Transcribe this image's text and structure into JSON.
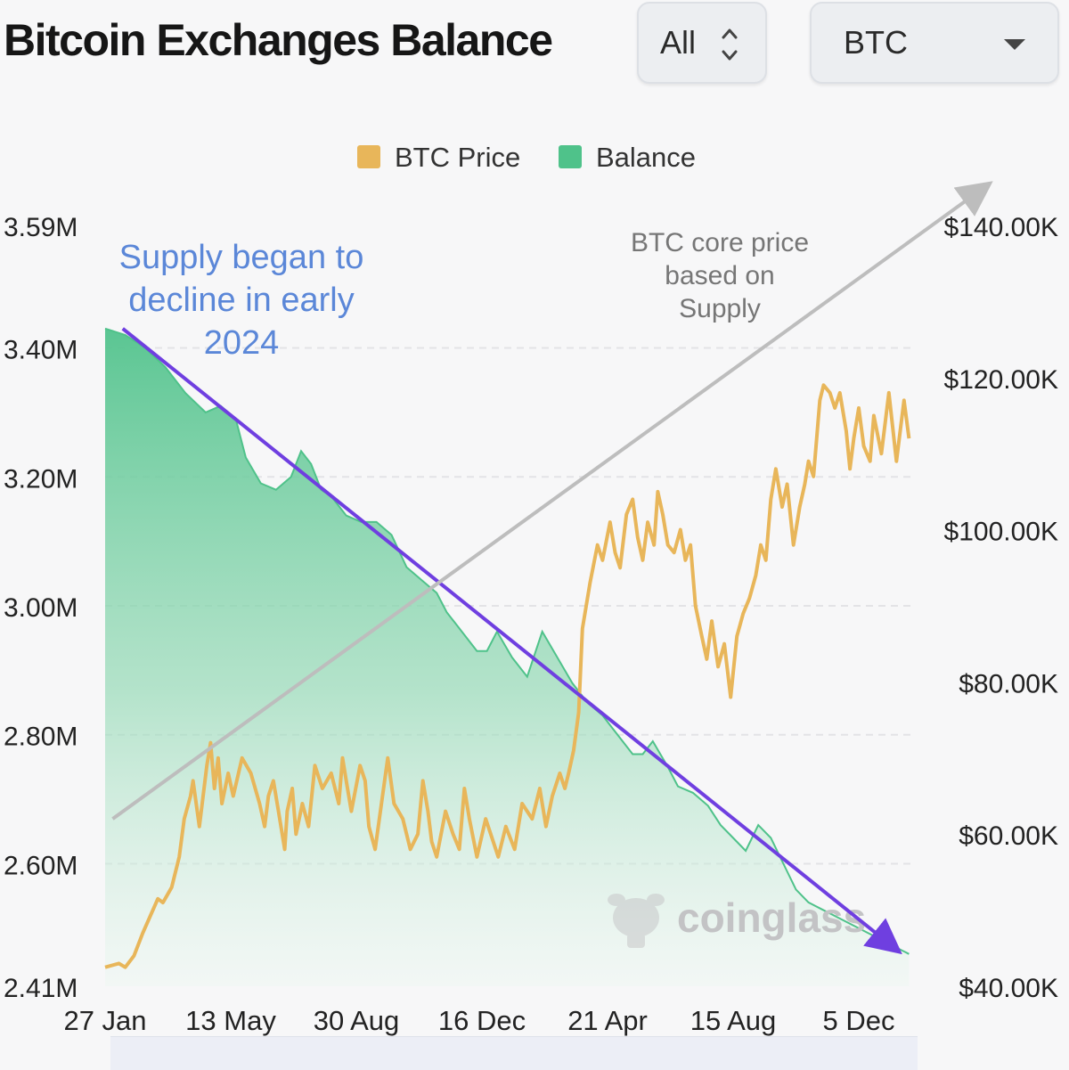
{
  "header": {
    "title": "Bitcoin Exchanges Balance",
    "range_select": {
      "value": "All"
    },
    "coin_select": {
      "value": "BTC"
    }
  },
  "chart_data": {
    "type": "line",
    "legend": [
      {
        "name": "BTC Price",
        "color": "#e8b65a"
      },
      {
        "name": "Balance",
        "color": "#4fc28a"
      }
    ],
    "legend_position": "top-center",
    "x_tick_labels": [
      "27 Jan",
      "13 May",
      "30 Aug",
      "16 Dec",
      "21 Apr",
      "15 Aug",
      "5 Dec"
    ],
    "y_left_tick_labels": [
      "3.59M",
      "3.40M",
      "3.20M",
      "3.00M",
      "2.80M",
      "2.60M",
      "2.41M"
    ],
    "y_left_ticks": [
      3590000,
      3400000,
      3200000,
      3000000,
      2800000,
      2600000,
      2410000
    ],
    "y_left_range": [
      2410000,
      3590000
    ],
    "y_right_tick_labels": [
      "$140.00K",
      "$120.00K",
      "$100.00K",
      "$80.00K",
      "$60.00K",
      "$40.00K"
    ],
    "y_right_ticks": [
      140000,
      120000,
      100000,
      80000,
      60000,
      40000
    ],
    "y_right_range": [
      40000,
      140000
    ],
    "grid": true,
    "series": [
      {
        "name": "BTC Price",
        "axis": "right",
        "color": "#e8b65a",
        "x_index": [
          0,
          0.11,
          0.16,
          0.23,
          0.3,
          0.38,
          0.42,
          0.46,
          0.53,
          0.59,
          0.63,
          0.68,
          0.7,
          0.75,
          0.78,
          0.81,
          0.84,
          0.87,
          0.9,
          0.93,
          0.98,
          1.02,
          1.09,
          1.16,
          1.23,
          1.27,
          1.3,
          1.34,
          1.38,
          1.43,
          1.45,
          1.49,
          1.52,
          1.57,
          1.62,
          1.67,
          1.73,
          1.8,
          1.86,
          1.89,
          1.93,
          1.96,
          2.03,
          2.07,
          2.1,
          2.15,
          2.2,
          2.25,
          2.3,
          2.37,
          2.43,
          2.49,
          2.53,
          2.57,
          2.6,
          2.64,
          2.71,
          2.77,
          2.82,
          2.86,
          2.9,
          2.96,
          3.03,
          3.09,
          3.13,
          3.19,
          3.26,
          3.32,
          3.4,
          3.46,
          3.51,
          3.56,
          3.62,
          3.66,
          3.69,
          3.73,
          3.77,
          3.8,
          3.86,
          3.92,
          3.96,
          4.02,
          4.06,
          4.1,
          4.15,
          4.2,
          4.24,
          4.28,
          4.32,
          4.37,
          4.4,
          4.44,
          4.48,
          4.53,
          4.58,
          4.62,
          4.66,
          4.7,
          4.75,
          4.79,
          4.83,
          4.88,
          4.93,
          4.98,
          5.03,
          5.08,
          5.13,
          5.18,
          5.22,
          5.26,
          5.3,
          5.34,
          5.39,
          5.43,
          5.48,
          5.53,
          5.57,
          5.6,
          5.64,
          5.69,
          5.72,
          5.77,
          5.81,
          5.85,
          5.9,
          5.93,
          5.96,
          6.0,
          6.04,
          6.09,
          6.12,
          6.18,
          6.24,
          6.3,
          6.36,
          6.4
        ],
        "values": [
          42500,
          43000,
          42500,
          44000,
          47000,
          50000,
          51500,
          51000,
          53000,
          57000,
          62000,
          65000,
          67000,
          61000,
          65000,
          69000,
          72000,
          66000,
          70000,
          64000,
          68000,
          65000,
          70000,
          68000,
          64000,
          61000,
          65000,
          67000,
          63000,
          58000,
          63000,
          66000,
          60000,
          64000,
          61000,
          69000,
          66000,
          68000,
          64000,
          70000,
          66000,
          63000,
          69000,
          67000,
          61000,
          58000,
          64000,
          70000,
          64000,
          62000,
          58000,
          60000,
          67000,
          63000,
          59000,
          57000,
          63000,
          60000,
          58000,
          66000,
          62000,
          57000,
          62000,
          59000,
          57000,
          61000,
          58000,
          64000,
          62000,
          66000,
          61000,
          65000,
          68000,
          66000,
          68000,
          71000,
          76000,
          87000,
          93000,
          98000,
          96000,
          101000,
          97000,
          95000,
          102000,
          104000,
          99000,
          96000,
          101000,
          98000,
          105000,
          102000,
          98000,
          97000,
          100000,
          96000,
          98000,
          90000,
          86000,
          83000,
          88000,
          82000,
          85000,
          78000,
          86000,
          89000,
          91000,
          94000,
          98000,
          96000,
          104000,
          108000,
          103000,
          106000,
          98000,
          103000,
          106000,
          109000,
          107000,
          117000,
          119000,
          118000,
          116000,
          118000,
          113000,
          108000,
          112000,
          116000,
          111000,
          109000,
          115000,
          110000,
          118000,
          109000,
          117000,
          112000
        ]
      },
      {
        "name": "Balance",
        "axis": "left",
        "color": "#4fc28a",
        "x_index": [
          0,
          0.16,
          0.32,
          0.48,
          0.64,
          0.8,
          0.92,
          1.04,
          1.12,
          1.24,
          1.36,
          1.48,
          1.56,
          1.64,
          1.72,
          1.8,
          1.92,
          2.04,
          2.16,
          2.28,
          2.4,
          2.52,
          2.64,
          2.72,
          2.84,
          2.96,
          3.04,
          3.12,
          3.24,
          3.36,
          3.48,
          3.6,
          3.72,
          3.84,
          3.96,
          4.04,
          4.12,
          4.2,
          4.28,
          4.36,
          4.48,
          4.56,
          4.68,
          4.8,
          4.9,
          5.0,
          5.1,
          5.2,
          5.3,
          5.4,
          5.5,
          5.6,
          5.7,
          5.8,
          5.9,
          6.0,
          6.1,
          6.2,
          6.3,
          6.4
        ],
        "values": [
          3430000,
          3420000,
          3400000,
          3370000,
          3330000,
          3300000,
          3310000,
          3290000,
          3230000,
          3190000,
          3180000,
          3200000,
          3240000,
          3220000,
          3180000,
          3170000,
          3140000,
          3130000,
          3130000,
          3110000,
          3060000,
          3040000,
          3020000,
          2990000,
          2960000,
          2930000,
          2930000,
          2960000,
          2920000,
          2890000,
          2960000,
          2920000,
          2880000,
          2850000,
          2830000,
          2810000,
          2790000,
          2770000,
          2770000,
          2790000,
          2750000,
          2720000,
          2710000,
          2690000,
          2660000,
          2640000,
          2620000,
          2660000,
          2640000,
          2600000,
          2560000,
          2540000,
          2530000,
          2520000,
          2510000,
          2500000,
          2490000,
          2480000,
          2470000,
          2460000
        ]
      }
    ],
    "annotations": [
      {
        "text_lines": [
          "Supply began to",
          "decline in early",
          "2024"
        ],
        "color": "#5b87d8"
      },
      {
        "text_lines": [
          "BTC core price",
          "based on",
          "Supply"
        ],
        "color": "#767676"
      }
    ],
    "trend_arrows": [
      {
        "meaning": "balance decline",
        "color": "#6f3fe0",
        "from": {
          "x_index": 0.14,
          "balance": 3430000
        },
        "to": {
          "x_index": 6.28,
          "balance": 2470000
        }
      },
      {
        "meaning": "price uptrend",
        "color": "#bdbdbd",
        "from": {
          "x_index": 0.06,
          "price": 62000
        },
        "to": {
          "x_index": 7.0,
          "price": 145000
        }
      }
    ],
    "watermark": "coinglass"
  }
}
